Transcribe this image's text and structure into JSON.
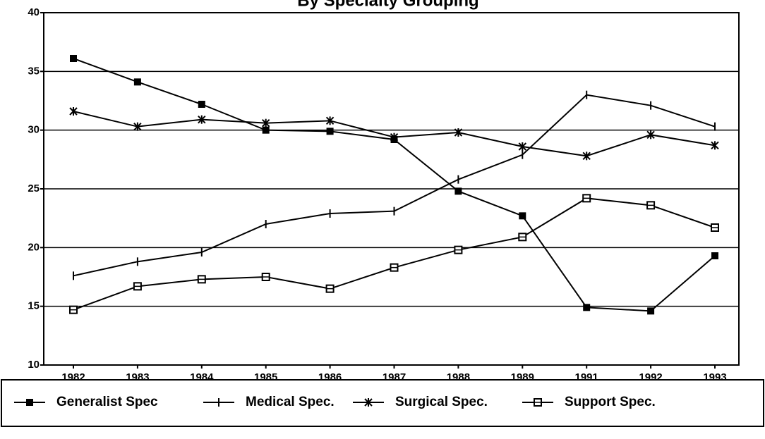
{
  "chart_data": {
    "type": "line",
    "title": "By Specialty Grouping",
    "categories": [
      "1982",
      "1983",
      "1984",
      "1985",
      "1986",
      "1987",
      "1988",
      "1989",
      "1991",
      "1992",
      "1993"
    ],
    "series": [
      {
        "name": "Generalist Spec",
        "color": "#000000",
        "marker": "filled-square",
        "values": [
          36.1,
          34.1,
          32.2,
          30.0,
          29.9,
          29.2,
          24.8,
          22.7,
          14.9,
          14.6,
          19.3
        ]
      },
      {
        "name": "Medical Spec.",
        "color": "#000000",
        "marker": "plus",
        "values": [
          17.6,
          18.8,
          19.6,
          22.0,
          22.9,
          23.1,
          25.8,
          27.9,
          33.0,
          32.1,
          30.3
        ]
      },
      {
        "name": "Surgical Spec.",
        "color": "#000000",
        "marker": "asterisk",
        "values": [
          31.6,
          30.3,
          30.9,
          30.6,
          30.8,
          29.4,
          29.8,
          28.6,
          27.8,
          29.6,
          28.7
        ]
      },
      {
        "name": "Support Spec.",
        "color": "#000000",
        "marker": "open-square",
        "values": [
          14.7,
          16.7,
          17.3,
          17.5,
          16.5,
          18.3,
          19.8,
          20.9,
          24.2,
          23.6,
          21.7
        ]
      }
    ],
    "ylim": [
      10,
      40
    ],
    "yticks": [
      10,
      15,
      20,
      25,
      30,
      35,
      40
    ],
    "grid": true,
    "legend": "bottom"
  }
}
